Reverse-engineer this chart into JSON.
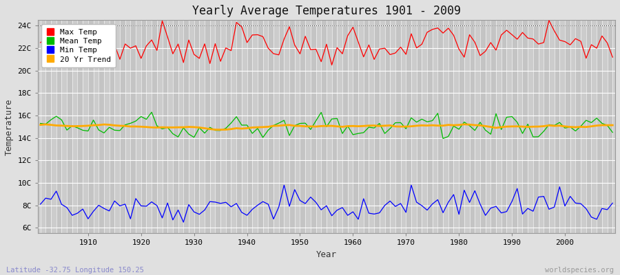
{
  "title": "Yearly Average Temperatures 1901 - 2009",
  "xlabel": "Year",
  "ylabel": "Temperature",
  "lat_lon_label": "Latitude -32.75 Longitude 150.25",
  "watermark": "worldspecies.org",
  "year_start": 1901,
  "year_end": 2009,
  "yticks": [
    6,
    8,
    10,
    12,
    14,
    16,
    18,
    20,
    22,
    24
  ],
  "ytick_labels": [
    "6C",
    "8C",
    "10C",
    "12C",
    "14C",
    "16C",
    "18C",
    "20C",
    "22C",
    "24C"
  ],
  "ylim": [
    5.5,
    24.5
  ],
  "xlim": [
    1900.5,
    2009.5
  ],
  "xticks": [
    1910,
    1920,
    1930,
    1940,
    1950,
    1960,
    1970,
    1980,
    1990,
    2000
  ],
  "bg_color": "#e0e0e0",
  "plot_bg_color": "#cccccc",
  "grid_color_light": "#dddddd",
  "grid_color_dark": "#bbbbbb",
  "max_temp_color": "#ff0000",
  "mean_temp_color": "#00bb00",
  "min_temp_color": "#0000ff",
  "trend_color": "#ffaa00",
  "dashed_line_y": 24,
  "legend_labels": [
    "Max Temp",
    "Mean Temp",
    "Min Temp",
    "20 Yr Trend"
  ],
  "lat_lon_color": "#8888cc",
  "watermark_color": "#999999"
}
